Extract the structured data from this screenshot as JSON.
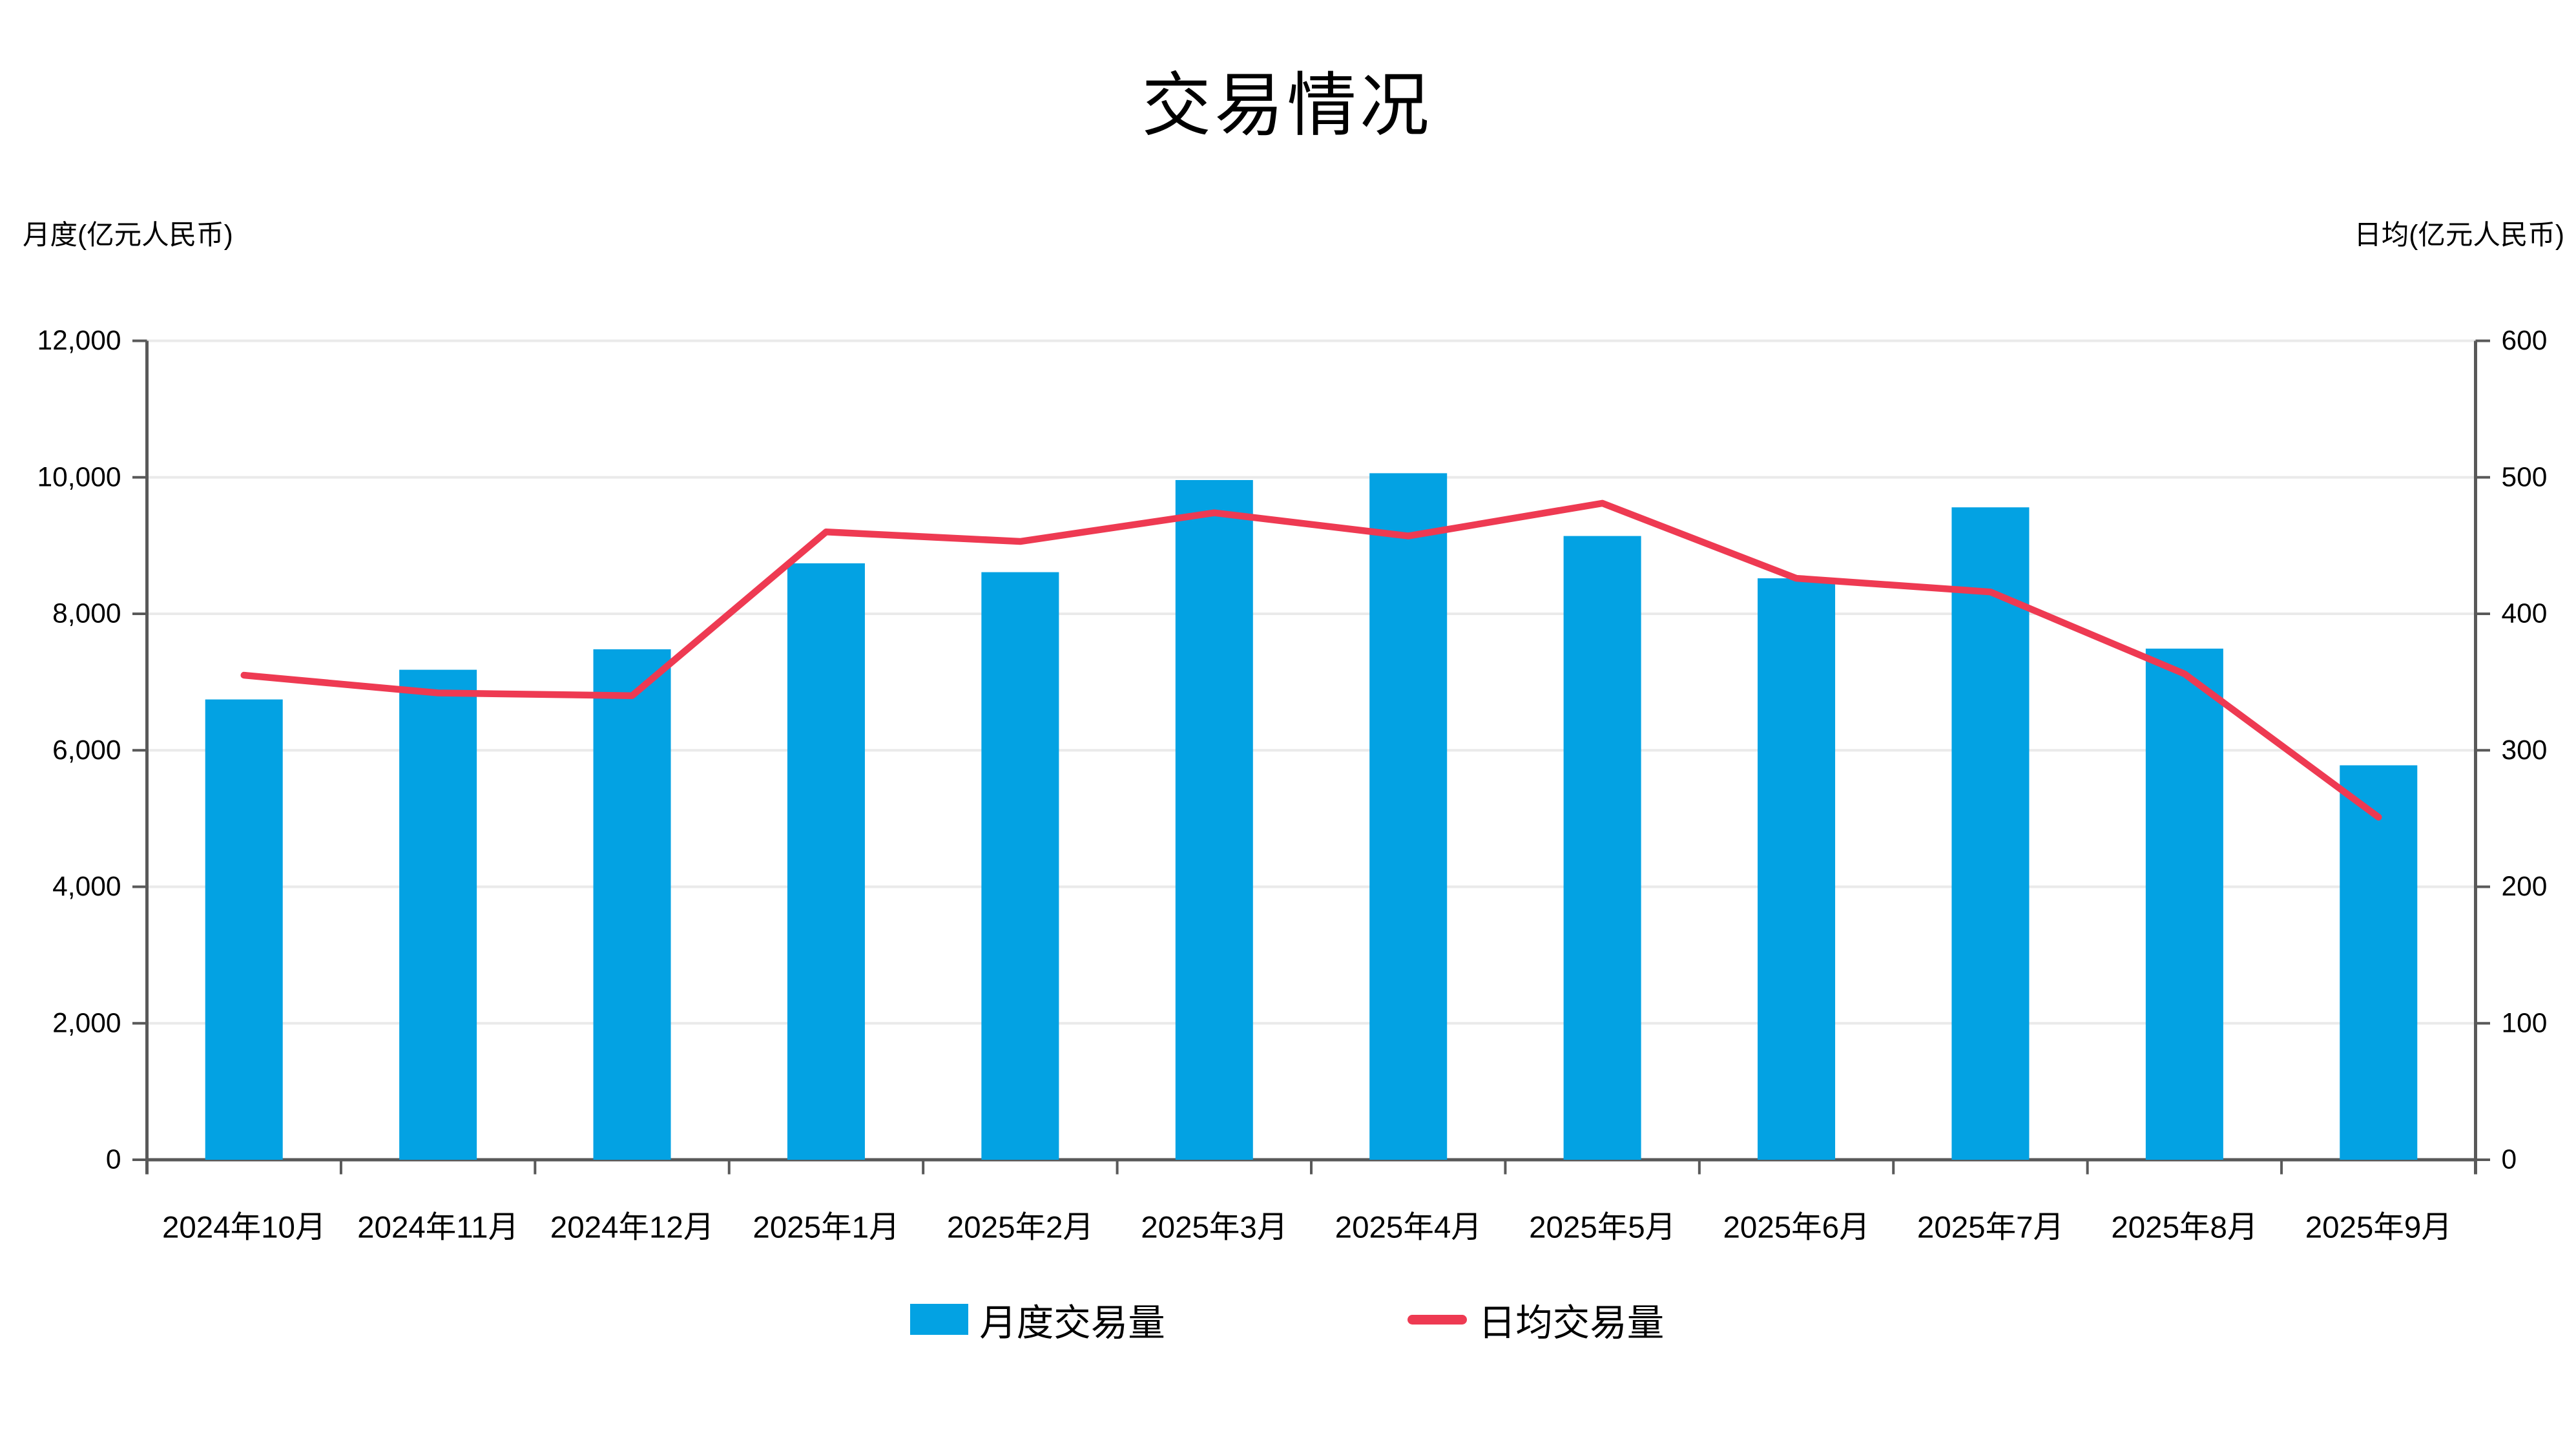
{
  "chart_data": {
    "type": "combo-bar-line-dual-axis",
    "title": "交易情况",
    "categories": [
      "2024年10月",
      "2024年11月",
      "2024年12月",
      "2025年1月",
      "2025年2月",
      "2025年3月",
      "2025年4月",
      "2025年5月",
      "2025年6月",
      "2025年7月",
      "2025年8月",
      "2025年9月"
    ],
    "series": [
      {
        "name": "月度交易量",
        "type": "bar",
        "yaxis": "left",
        "values": [
          6745,
          7180,
          7480,
          8740,
          8610,
          9960,
          10060,
          9140,
          8520,
          9560,
          7490,
          5780
        ]
      },
      {
        "name": "日均交易量",
        "type": "line",
        "yaxis": "right",
        "values": [
          355,
          342,
          340,
          460,
          453,
          474,
          457,
          481,
          426,
          416,
          356,
          251
        ]
      }
    ],
    "left_axis": {
      "label": "月度(亿元人民币)",
      "range": [
        0,
        12000
      ],
      "tick_step": 2000,
      "ticks": [
        "0",
        "2,000",
        "4,000",
        "6,000",
        "8,000",
        "10,000",
        "12,000"
      ]
    },
    "right_axis": {
      "label": "日均(亿元人民币)",
      "range": [
        0,
        600
      ],
      "tick_step": 100,
      "ticks": [
        "0",
        "100",
        "200",
        "300",
        "400",
        "500",
        "600"
      ]
    },
    "legend": {
      "position": "bottom",
      "entries": [
        "月度交易量",
        "日均交易量"
      ]
    },
    "grid": "horizontal-light-gridlines",
    "colors": {
      "bar": "#03A2E3",
      "line": "#EE3A52",
      "grid": "#EAEAEA",
      "axis": "#595959",
      "text": "#000000",
      "background": "#FFFFFF"
    }
  }
}
